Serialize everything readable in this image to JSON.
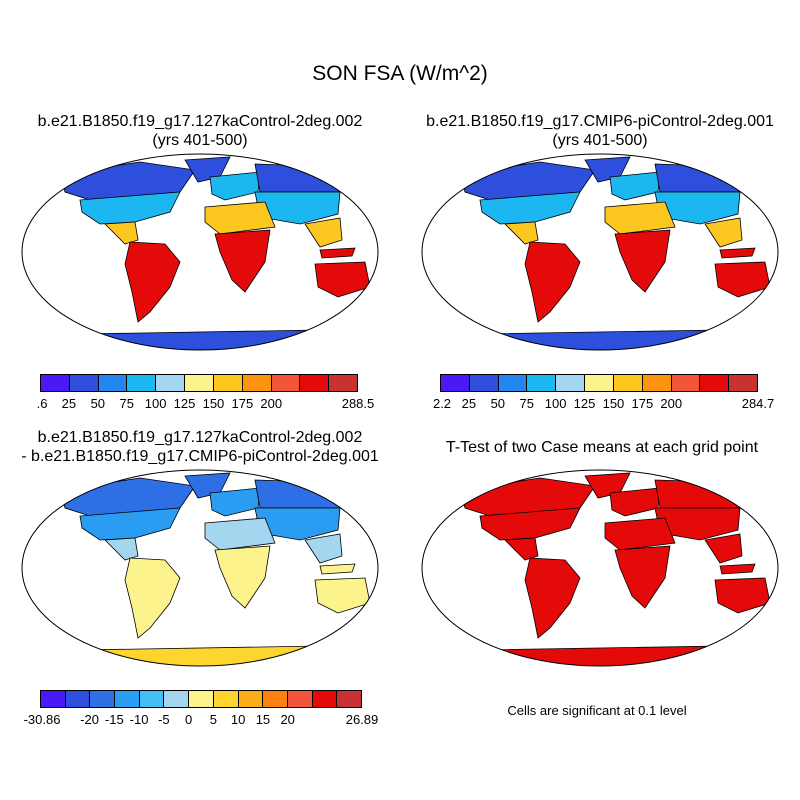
{
  "title": "SON FSA (W/m^2)",
  "panels": [
    {
      "title1": "b.e21.B1850.f19_g17.127kaControl-2deg.002",
      "title2": "(yrs 401-500)",
      "kind": "abs"
    },
    {
      "title1": "b.e21.B1850.f19_g17.CMIP6-piControl-2deg.001",
      "title2": "(yrs 401-500)",
      "kind": "abs"
    },
    {
      "title1": "b.e21.B1850.f19_g17.127kaControl-2deg.002",
      "title2": "- b.e21.B1850.f19_g17.CMIP6-piControl-2deg.001",
      "kind": "diff"
    },
    {
      "title1": "T-Test of two Case means at each grid point",
      "title2": "",
      "kind": "ttest"
    }
  ],
  "colorbars": [
    {
      "colors": [
        "#4b19f5",
        "#2e4fdb",
        "#2287ee",
        "#1cb7f0",
        "#a5d6f0",
        "#fdf38c",
        "#fcc71e",
        "#fd9410",
        "#f2553a",
        "#e40a0a",
        "#c83232"
      ],
      "labels": [
        ".6",
        "25",
        "50",
        "75",
        "100",
        "125",
        "150",
        "175",
        "200",
        "",
        "288.5"
      ]
    },
    {
      "colors": [
        "#4b19f5",
        "#2e4fdb",
        "#2287ee",
        "#1cb7f0",
        "#a5d6f0",
        "#fdf38c",
        "#fcc71e",
        "#fd9410",
        "#f2553a",
        "#e40a0a",
        "#c83232"
      ],
      "labels": [
        "2.2",
        "25",
        "50",
        "75",
        "100",
        "125",
        "150",
        "175",
        "200",
        "",
        "284.7"
      ]
    },
    {
      "colors": [
        "#4b19f5",
        "#2e4fdb",
        "#2f6fe6",
        "#2a9df2",
        "#44bff5",
        "#a5d6f0",
        "#fdf38c",
        "#fcd52e",
        "#fbae18",
        "#fd8010",
        "#f2553a",
        "#e40a0a",
        "#c83232"
      ],
      "labels": [
        "-30.86",
        "",
        "-20",
        "-15",
        "-10",
        "-5",
        "0",
        "5",
        "10",
        "15",
        "20",
        "",
        "26.89"
      ]
    }
  ],
  "note": "Cells are significant at 0.1 level"
}
